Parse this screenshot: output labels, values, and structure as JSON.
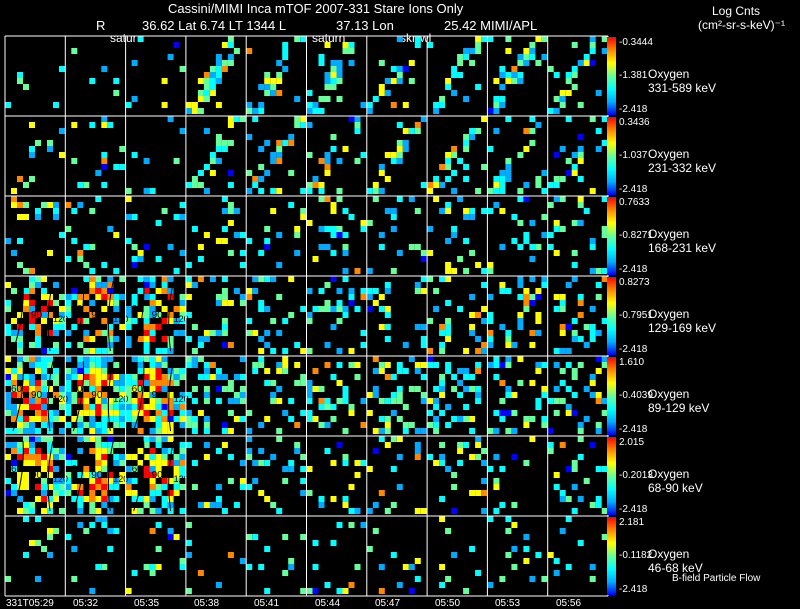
{
  "header": {
    "title": "Cassini/MIMI Inca mTOF  2007-331   Stare    Ions Only",
    "r_label": "R",
    "lat_text": "36.62 Lat 6.74 LT 1344 L",
    "lon_text": "37.13 Lon",
    "mimi_text": "25.42  MIMI/APL",
    "colorbar_title": "Log Cnts",
    "colorbar_units": "(cm²-sr-s-keV)⁻¹"
  },
  "overlay_labels": {
    "col1": "satur",
    "col5": "saturn",
    "col7": "skr-wl"
  },
  "footer": {
    "bfield_label": "B-field Particle Flow"
  },
  "chart_data": {
    "type": "heatmap",
    "colormap": [
      "#0000ff",
      "#00aaff",
      "#00ffff",
      "#66ff99",
      "#ffff00",
      "#ff8800",
      "#ff0000"
    ],
    "background": "#000000",
    "times": [
      "331T05:29",
      "05:32",
      "05:35",
      "05:38",
      "05:41",
      "05:44",
      "05:47",
      "05:50",
      "05:53",
      "05:56"
    ],
    "pitch_contours": [
      "60",
      "90",
      "120"
    ],
    "rows": [
      {
        "species": "Oxygen",
        "energy": "331-589 keV",
        "max": "-0.3444",
        "mid": "-1.381",
        "min": "-2.418",
        "density": 0.05,
        "hot": 0.0
      },
      {
        "species": "Oxygen",
        "energy": "231-332 keV",
        "max": "0.3436",
        "mid": "-1.037",
        "min": "-2.418",
        "density": 0.08,
        "hot": 0.0
      },
      {
        "species": "Oxygen",
        "energy": "168-231 keV",
        "max": "0.7633",
        "mid": "-0.8271",
        "min": "-2.418",
        "density": 0.14,
        "hot": 0.0
      },
      {
        "species": "Oxygen",
        "energy": "129-169 keV",
        "max": "0.8273",
        "mid": "-0.7951",
        "min": "-2.418",
        "density": 0.22,
        "hot": 0.5
      },
      {
        "species": "Oxygen",
        "energy": "89-129 keV",
        "max": "1.610",
        "mid": "-0.4039",
        "min": "-2.418",
        "density": 0.32,
        "hot": 0.8
      },
      {
        "species": "Oxygen",
        "energy": "68-90 keV",
        "max": "2.015",
        "mid": "-0.2013",
        "min": "-2.418",
        "density": 0.15,
        "hot": 0.6
      },
      {
        "species": "Oxygen",
        "energy": "46-68 keV",
        "max": "2.181",
        "mid": "-0.1182",
        "min": "-2.418",
        "density": 0.09,
        "hot": 0.0
      }
    ]
  }
}
